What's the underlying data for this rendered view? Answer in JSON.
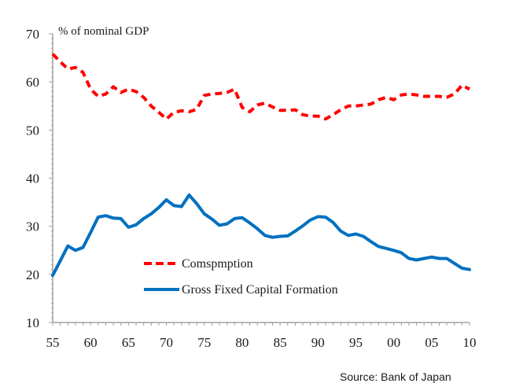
{
  "chart_data": {
    "type": "line",
    "title": "",
    "unit_label": "% of nominal GDP",
    "xlabel": "",
    "ylabel": "",
    "source": "Source: Bank of Japan",
    "xlim": [
      1955,
      2010
    ],
    "ylim": [
      10,
      70
    ],
    "yticks": [
      10,
      20,
      30,
      40,
      50,
      60,
      70
    ],
    "xticks": [
      1955,
      1960,
      1965,
      1970,
      1975,
      1980,
      1985,
      1990,
      1995,
      2000,
      2005,
      2010
    ],
    "xtick_labels": [
      "55",
      "60",
      "65",
      "70",
      "75",
      "80",
      "85",
      "90",
      "95",
      "00",
      "05",
      "10"
    ],
    "grid": false,
    "legend_position": "lower-center",
    "series": [
      {
        "name": "Comspmption",
        "color": "#FF0000",
        "style": "dashed",
        "x": [
          1955,
          1956,
          1957,
          1958,
          1959,
          1960,
          1961,
          1962,
          1963,
          1964,
          1965,
          1966,
          1967,
          1968,
          1969,
          1970,
          1971,
          1972,
          1973,
          1974,
          1975,
          1976,
          1977,
          1978,
          1979,
          1980,
          1981,
          1982,
          1983,
          1984,
          1985,
          1986,
          1987,
          1988,
          1989,
          1990,
          1991,
          1992,
          1993,
          1994,
          1995,
          1996,
          1997,
          1998,
          1999,
          2000,
          2001,
          2002,
          2003,
          2004,
          2005,
          2006,
          2007,
          2008,
          2009,
          2010
        ],
        "values": [
          65.8,
          64.2,
          62.7,
          63.0,
          62.0,
          58.5,
          57.0,
          57.5,
          59.0,
          57.8,
          58.5,
          58.0,
          56.8,
          55.0,
          53.7,
          52.3,
          53.7,
          54.0,
          53.8,
          54.3,
          57.2,
          57.5,
          57.6,
          57.8,
          58.5,
          54.7,
          53.8,
          55.2,
          55.6,
          54.8,
          54.1,
          54.1,
          54.2,
          53.2,
          52.9,
          52.9,
          52.3,
          53.2,
          54.2,
          55.0,
          55.0,
          55.2,
          55.4,
          56.3,
          56.8,
          56.3,
          57.3,
          57.5,
          57.3,
          57.0,
          57.0,
          57.0,
          56.8,
          57.5,
          59.3,
          58.5
        ]
      },
      {
        "name": "Gross Fixed Capital Formation",
        "color": "#0070C0",
        "style": "solid",
        "x": [
          1955,
          1956,
          1957,
          1958,
          1959,
          1960,
          1961,
          1962,
          1963,
          1964,
          1965,
          1966,
          1967,
          1968,
          1969,
          1970,
          1971,
          1972,
          1973,
          1974,
          1975,
          1976,
          1977,
          1978,
          1979,
          1980,
          1981,
          1982,
          1983,
          1984,
          1985,
          1986,
          1987,
          1988,
          1989,
          1990,
          1991,
          1992,
          1993,
          1994,
          1995,
          1996,
          1997,
          1998,
          1999,
          2000,
          2001,
          2002,
          2003,
          2004,
          2005,
          2006,
          2007,
          2008,
          2009,
          2010
        ],
        "values": [
          19.8,
          22.8,
          25.9,
          25.0,
          25.6,
          28.7,
          31.9,
          32.2,
          31.7,
          31.6,
          29.8,
          30.3,
          31.6,
          32.6,
          33.9,
          35.5,
          34.3,
          34.1,
          36.5,
          34.7,
          32.6,
          31.5,
          30.2,
          30.5,
          31.6,
          31.8,
          30.7,
          29.5,
          28.1,
          27.7,
          27.9,
          28.0,
          29.0,
          30.1,
          31.3,
          32.0,
          31.9,
          30.8,
          29.0,
          28.1,
          28.4,
          27.9,
          26.8,
          25.8,
          25.4,
          25.0,
          24.5,
          23.3,
          23.0,
          23.3,
          23.6,
          23.3,
          23.3,
          22.3,
          21.3,
          21.0
        ]
      }
    ]
  }
}
